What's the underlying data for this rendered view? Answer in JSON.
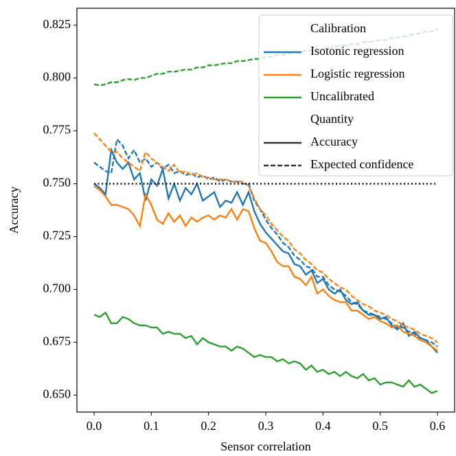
{
  "chart_data": {
    "type": "line",
    "x_label": "Sensor correlation",
    "y_label": "Accuracy",
    "xlim": [
      -0.03,
      0.63
    ],
    "ylim": [
      0.642,
      0.833
    ],
    "xticks": [
      {
        "value": 0,
        "label": "0.0"
      },
      0.1,
      0.2,
      0.3,
      0.4,
      0.5,
      0.6
    ],
    "yticks": [
      {
        "value": 0.65,
        "label": "0.650"
      },
      0.675,
      {
        "value": 0.7,
        "label": "0.700"
      },
      0.725,
      {
        "value": 0.75,
        "label": "0.750"
      },
      0.775,
      {
        "value": 0.8,
        "label": "0.800"
      },
      0.825
    ],
    "grid": false,
    "x": [
      0,
      0.01,
      0.02,
      0.03,
      0.04,
      0.05,
      0.06,
      0.07,
      0.08,
      0.09,
      0.1,
      0.11,
      0.12,
      0.13,
      0.14,
      0.15,
      0.16,
      0.17,
      0.18,
      0.19,
      0.2,
      0.21,
      0.22,
      0.23,
      0.24,
      0.25,
      0.26,
      0.27,
      0.28,
      0.29,
      0.3,
      0.31,
      0.32,
      0.33,
      0.34,
      0.35,
      0.36,
      0.37,
      0.38,
      0.39,
      0.4,
      0.41,
      0.42,
      0.43,
      0.44,
      0.45,
      0.46,
      0.47,
      0.48,
      0.49,
      0.5,
      0.51,
      0.52,
      0.53,
      0.54,
      0.55,
      0.56,
      0.57,
      0.58,
      0.59,
      0.6
    ],
    "series": [
      {
        "name": "Isotonic regression",
        "color": "#1f77b4",
        "values": [
          0.75,
          0.748,
          0.745,
          0.766,
          0.76,
          0.757,
          0.76,
          0.752,
          0.755,
          0.742,
          0.752,
          0.749,
          0.757,
          0.743,
          0.75,
          0.742,
          0.748,
          0.745,
          0.75,
          0.742,
          0.744,
          0.746,
          0.739,
          0.742,
          0.741,
          0.746,
          0.74,
          0.746,
          0.737,
          0.731,
          0.727,
          0.724,
          0.721,
          0.718,
          0.717,
          0.712,
          0.711,
          0.707,
          0.709,
          0.703,
          0.705,
          0.7,
          0.698,
          0.7,
          0.695,
          0.693,
          0.694,
          0.69,
          0.688,
          0.688,
          0.686,
          0.687,
          0.683,
          0.681,
          0.684,
          0.678,
          0.68,
          0.677,
          0.676,
          0.673,
          0.67
        ],
        "expected_confidence": [
          0.76,
          0.758,
          0.756,
          0.755,
          0.771,
          0.768,
          0.762,
          0.766,
          0.76,
          0.762,
          0.758,
          0.76,
          0.757,
          0.759,
          0.755,
          0.756,
          0.754,
          0.755,
          0.753,
          0.754,
          0.752,
          0.753,
          0.751,
          0.752,
          0.751,
          0.751,
          0.75,
          0.75,
          0.742,
          0.738,
          0.733,
          0.729,
          0.726,
          0.722,
          0.72,
          0.716,
          0.714,
          0.711,
          0.71,
          0.706,
          0.706,
          0.702,
          0.7,
          0.699,
          0.697,
          0.694,
          0.693,
          0.69,
          0.689,
          0.688,
          0.687,
          0.686,
          0.684,
          0.682,
          0.682,
          0.68,
          0.679,
          0.677,
          0.676,
          0.675,
          0.673
        ]
      },
      {
        "name": "Logistic regression",
        "color": "#ff7f0e",
        "values": [
          0.749,
          0.747,
          0.744,
          0.74,
          0.74,
          0.739,
          0.738,
          0.735,
          0.73,
          0.745,
          0.74,
          0.733,
          0.731,
          0.736,
          0.732,
          0.735,
          0.73,
          0.734,
          0.732,
          0.734,
          0.735,
          0.733,
          0.735,
          0.734,
          0.738,
          0.733,
          0.738,
          0.737,
          0.729,
          0.723,
          0.722,
          0.718,
          0.713,
          0.711,
          0.711,
          0.706,
          0.705,
          0.702,
          0.706,
          0.698,
          0.7,
          0.697,
          0.695,
          0.694,
          0.694,
          0.69,
          0.69,
          0.688,
          0.686,
          0.687,
          0.685,
          0.684,
          0.682,
          0.683,
          0.68,
          0.679,
          0.678,
          0.676,
          0.675,
          0.673,
          0.671
        ],
        "expected_confidence": [
          0.774,
          0.771,
          0.768,
          0.765,
          0.765,
          0.762,
          0.76,
          0.758,
          0.756,
          0.765,
          0.762,
          0.76,
          0.758,
          0.756,
          0.759,
          0.755,
          0.756,
          0.754,
          0.755,
          0.753,
          0.753,
          0.752,
          0.752,
          0.752,
          0.751,
          0.751,
          0.751,
          0.749,
          0.743,
          0.738,
          0.735,
          0.731,
          0.728,
          0.725,
          0.723,
          0.719,
          0.717,
          0.714,
          0.712,
          0.709,
          0.708,
          0.705,
          0.703,
          0.701,
          0.7,
          0.697,
          0.695,
          0.693,
          0.692,
          0.69,
          0.689,
          0.688,
          0.686,
          0.685,
          0.683,
          0.682,
          0.681,
          0.679,
          0.678,
          0.677,
          0.675
        ]
      },
      {
        "name": "Uncalibrated",
        "color": "#2ca02c",
        "values": [
          0.688,
          0.687,
          0.689,
          0.684,
          0.684,
          0.687,
          0.686,
          0.684,
          0.683,
          0.683,
          0.682,
          0.682,
          0.679,
          0.68,
          0.679,
          0.679,
          0.677,
          0.678,
          0.674,
          0.677,
          0.675,
          0.674,
          0.673,
          0.673,
          0.671,
          0.673,
          0.672,
          0.67,
          0.668,
          0.669,
          0.668,
          0.668,
          0.666,
          0.667,
          0.665,
          0.666,
          0.665,
          0.662,
          0.664,
          0.661,
          0.662,
          0.66,
          0.661,
          0.659,
          0.661,
          0.659,
          0.658,
          0.66,
          0.657,
          0.658,
          0.655,
          0.656,
          0.656,
          0.655,
          0.654,
          0.657,
          0.654,
          0.655,
          0.653,
          0.651,
          0.652
        ],
        "expected_confidence": [
          0.797,
          0.7965,
          0.797,
          0.798,
          0.798,
          0.799,
          0.7995,
          0.799,
          0.8,
          0.8,
          0.801,
          0.802,
          0.802,
          0.803,
          0.803,
          0.8035,
          0.804,
          0.804,
          0.805,
          0.805,
          0.806,
          0.806,
          0.8065,
          0.807,
          0.807,
          0.808,
          0.808,
          0.8085,
          0.809,
          0.809,
          0.81,
          0.81,
          0.811,
          0.811,
          0.8115,
          0.812,
          0.812,
          0.813,
          0.813,
          0.8135,
          0.814,
          0.814,
          0.815,
          0.815,
          0.8155,
          0.816,
          0.816,
          0.817,
          0.817,
          0.8175,
          0.818,
          0.818,
          0.819,
          0.819,
          0.8195,
          0.82,
          0.821,
          0.821,
          0.822,
          0.822,
          0.823
        ]
      }
    ],
    "reference_line": {
      "y": 0.75,
      "color": "#000000",
      "style": "dotted"
    },
    "legend": {
      "position": "upper right",
      "calibration_title": "Calibration",
      "quantity_title": "Quantity",
      "quantities": [
        {
          "name": "Accuracy",
          "style": "solid"
        },
        {
          "name": "Expected confidence",
          "style": "dashed"
        }
      ]
    }
  }
}
